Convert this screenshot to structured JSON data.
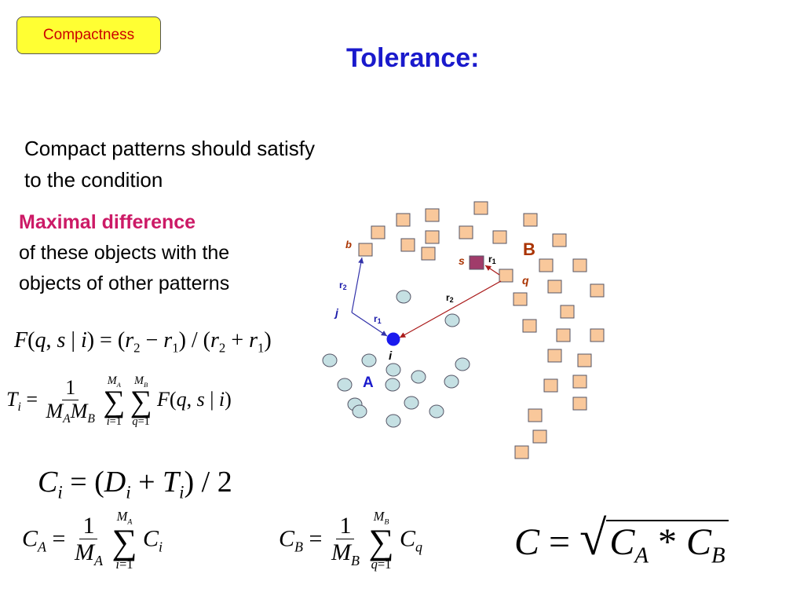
{
  "badge": "Compactness",
  "title": "Tolerance:",
  "intro": {
    "line1": "Compact patterns should satisfy",
    "line2": "to the  condition"
  },
  "maxdiff": {
    "head": "Maximal difference",
    "line1": "of these objects with the",
    "line2": "objects of other patterns"
  },
  "diagram": {
    "label_A": "A",
    "label_B": "B",
    "label_i": "i",
    "label_j": "j",
    "label_b": "b",
    "label_s": "s",
    "label_q": "q",
    "label_r1": "r",
    "label_r2": "r",
    "sub_1": "1",
    "sub_2": "2"
  },
  "colors": {
    "circle": "#c5e0e3",
    "square": "#f9c89b",
    "s_square": "#a03c6a",
    "point_i": "#1a1aee",
    "arrow_blue": "#3333aa",
    "arrow_red": "#aa1a1a",
    "title": "#1a1acc",
    "accent": "#cc1a66"
  },
  "formulas": {
    "F": "F(q, s | i) = (r₂ − r₁) / (r₂ + r₁)",
    "T": "Tᵢ = 1/(M_A M_B) Σᵢ₌₁^{M_A} Σ_q₌₁^{M_B} F(q, s | i)",
    "C": "Cᵢ = (Dᵢ + Tᵢ) / 2",
    "CA": "C_A = 1/M_A Σᵢ₌₁^{M_A} Cᵢ",
    "CB": "C_B = 1/M_B Σ_q₌₁^{M_B} C_q",
    "Ctotal": "C = √(C_A * C_B)"
  }
}
